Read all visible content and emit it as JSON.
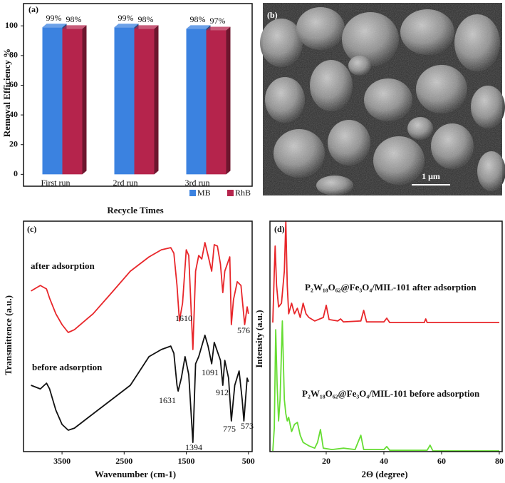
{
  "chart_data": [
    {
      "type": "bar",
      "panel_label": "(a)",
      "xlabel": "Recycle Times",
      "ylabel": "Removal Efficiency %",
      "categories": [
        "First run",
        "2rd run",
        "3rd run"
      ],
      "series": [
        {
          "name": "MB",
          "color": "#3b82e0",
          "values": [
            99,
            99,
            98
          ],
          "value_labels": [
            "99%",
            "99%",
            "98%"
          ]
        },
        {
          "name": "RhB",
          "color": "#b5244c",
          "values": [
            98,
            98,
            97
          ],
          "value_labels": [
            "98%",
            "98%",
            "97%"
          ]
        }
      ],
      "ylim": [
        -8,
        115
      ],
      "yticks": [
        0,
        20,
        40,
        60,
        80,
        100
      ],
      "legend": "lower right"
    },
    {
      "type": "line",
      "panel_label": "(c)",
      "xlabel": "Wavenumber (cm-1)",
      "ylabel": "Transmittence (a.u.)",
      "xlim": [
        4120,
        440
      ],
      "xticks": [
        3500,
        2500,
        1500,
        500
      ],
      "ylim": [
        0,
        100
      ],
      "series": [
        {
          "name": "after adsorption",
          "color": "#e8262a",
          "x": [
            4000,
            3850,
            3750,
            3700,
            3600,
            3500,
            3400,
            3300,
            3000,
            2700,
            2400,
            2100,
            1900,
            1750,
            1700,
            1650,
            1610,
            1560,
            1500,
            1460,
            1394,
            1350,
            1300,
            1250,
            1200,
            1150,
            1091,
            1050,
            1000,
            950,
            912,
            880,
            800,
            775,
            740,
            680,
            620,
            560,
            520,
            500
          ],
          "values": [
            69.7,
            72.1,
            70.6,
            66.6,
            59.8,
            55.1,
            51.7,
            52.9,
            59.8,
            69.0,
            78.3,
            84.5,
            87.6,
            88.5,
            86.1,
            72.1,
            56.7,
            64.4,
            87.6,
            85.1,
            44.3,
            78.3,
            85.1,
            83.6,
            90.7,
            85.1,
            78.3,
            89.8,
            89.2,
            81.4,
            69.0,
            78.3,
            84.5,
            55.1,
            65.9,
            73.7,
            72.1,
            55.1,
            62.8,
            59.8
          ]
        },
        {
          "name": "before adsorption",
          "color": "#111111",
          "x": [
            4000,
            3850,
            3750,
            3700,
            3600,
            3500,
            3400,
            3300,
            3000,
            2700,
            2400,
            2100,
            1900,
            1750,
            1700,
            1650,
            1631,
            1580,
            1520,
            1460,
            1394,
            1350,
            1300,
            1200,
            1150,
            1091,
            1050,
            950,
            912,
            880,
            820,
            775,
            720,
            650,
            600,
            573,
            520,
            500
          ],
          "values": [
            28.8,
            27.2,
            29.7,
            27.2,
            18.0,
            11.8,
            9.3,
            10.2,
            16.4,
            22.6,
            28.8,
            41.2,
            44.3,
            45.8,
            42.7,
            28.8,
            26.3,
            31.9,
            41.2,
            33.4,
            4.0,
            38.1,
            41.2,
            50.5,
            45.8,
            38.1,
            47.4,
            39.6,
            28.8,
            39.6,
            31.9,
            13.3,
            28.8,
            35.0,
            22.6,
            13.3,
            31.9,
            30.3
          ]
        }
      ],
      "annotations": [
        "1610",
        "576",
        "1091",
        "912",
        "1631",
        "775",
        "573",
        "1394"
      ]
    },
    {
      "type": "line",
      "panel_label": "(d)",
      "xlabel": "2Θ (degree)",
      "ylabel": "Intensity (a.u.)",
      "xlim": [
        0.5,
        81
      ],
      "xticks": [
        20,
        40,
        60,
        80
      ],
      "ylim": [
        0,
        100
      ],
      "series": [
        {
          "name": "P₂W₁₈O₆₂@Fe₃O₄/MIL-101 after adsorption",
          "color": "#e8262a",
          "x": [
            1.5,
            2,
            2.3,
            2.8,
            3.5,
            4.5,
            5.5,
            6,
            6.5,
            7,
            8,
            9,
            10,
            11,
            12,
            13,
            14,
            16,
            19,
            20,
            21,
            24,
            25,
            26,
            32,
            33,
            34,
            40,
            41,
            42,
            54,
            54.5,
            55,
            80
          ],
          "values": [
            56.0,
            78.3,
            89.2,
            72.1,
            62.8,
            64.4,
            78.3,
            100,
            72.1,
            59.8,
            64.4,
            59.8,
            62.2,
            58.2,
            64.4,
            59.8,
            58.2,
            56.7,
            58.2,
            63.5,
            57.3,
            56.7,
            57.6,
            56.3,
            56.7,
            61.3,
            56.3,
            56.3,
            57.9,
            56.0,
            56.0,
            57.6,
            56.0,
            56.0
          ]
        },
        {
          "name": "P₂W₁₈O₆₂@Fe₃O₄/MIL-101  before adsorption",
          "color": "#66dd33",
          "x": [
            1.5,
            2,
            2.5,
            3,
            3.5,
            4,
            4.8,
            5.5,
            6,
            6.5,
            7,
            8,
            9,
            10,
            11,
            12,
            14,
            16,
            17,
            18,
            19,
            22,
            26,
            30,
            32,
            33,
            40,
            41,
            42,
            55,
            56,
            57,
            80
          ],
          "values": [
            0.3,
            10.2,
            52.9,
            28.8,
            13.3,
            22.6,
            56.7,
            22.6,
            16.4,
            13.3,
            14.9,
            8.7,
            11.8,
            12.7,
            7.1,
            4.0,
            2.5,
            1.5,
            4.0,
            9.6,
            1.5,
            0.9,
            1.5,
            0.9,
            7.1,
            0.9,
            0.9,
            2.2,
            0.6,
            0.6,
            2.8,
            0.3,
            0.3
          ]
        }
      ]
    }
  ],
  "image_panel": {
    "label": "(b)",
    "scale_bar": "1 μm"
  }
}
